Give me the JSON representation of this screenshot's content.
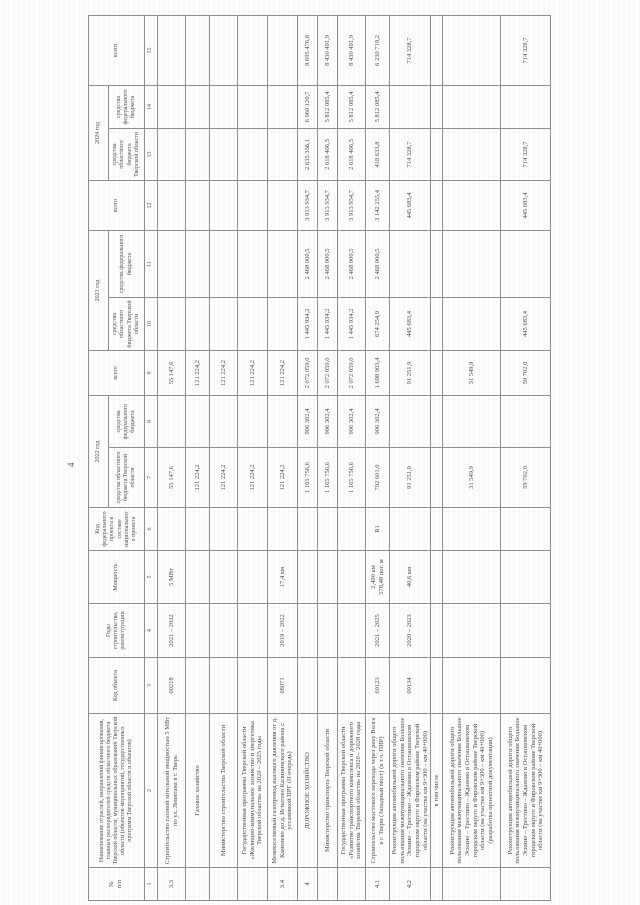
{
  "page": {
    "number": "4"
  },
  "table": {
    "header": {
      "col_no": "№\nп/п",
      "col_name": "Наименование отраслей, направлений финансирования, главных распорядителей средств областного бюджета Тверской области, муниципальных образований Тверской области (объектов-мероприятий, государственных программ Тверской области и объектов)",
      "col_code": "Код объекта",
      "col_years": "Годы строительства, реконструкции",
      "col_capacity": "Мощность",
      "col_fedproj": "Код федерального проекта в составе национального проекта",
      "years": [
        {
          "label": "2022 год",
          "oblast": "средства областного бюджета Тверской области",
          "federal": "средства федерального бюджета",
          "total": "всего"
        },
        {
          "label": "2023 год",
          "oblast": "средства областного бюджета Тверской области",
          "federal": "средства федерального бюджета",
          "total": "всего"
        },
        {
          "label": "2024 год",
          "oblast": "средства областного бюджета Тверской области",
          "federal": "средства федерального бюджета",
          "total": "всего"
        }
      ],
      "numbering": [
        "1",
        "2",
        "3",
        "4",
        "5",
        "6",
        "7",
        "8",
        "9",
        "10",
        "11",
        "12",
        "13",
        "14",
        "15"
      ]
    },
    "rows": [
      {
        "cells": [
          "3.3",
          "Строительство газовой котельной мощностью 5 МВт по ул. Левитана в г. Тверь",
          "00218",
          "2021 – 2022",
          "5 МВт",
          "",
          "55 147,6",
          "",
          "55 147,6",
          "",
          "",
          "",
          "",
          "",
          ""
        ]
      },
      {
        "cells": [
          "",
          "Газовое хозяйство",
          "",
          "",
          "",
          "",
          "121 224,2",
          "",
          "121 224,2",
          "",
          "",
          "",
          "",
          "",
          ""
        ]
      },
      {
        "cells": [
          "",
          "Министерство строительства Тверской области",
          "",
          "",
          "",
          "",
          "121 224,2",
          "",
          "121 224,2",
          "",
          "",
          "",
          "",
          "",
          ""
        ]
      },
      {
        "cells": [
          "",
          "Государственная программа Тверской области «Жилищно-коммунальное хозяйство и энергетика Тверской области» на 2020 – 2025 годы",
          "",
          "",
          "",
          "",
          "121 224,2",
          "",
          "121 224,2",
          "",
          "",
          "",
          "",
          "",
          ""
        ]
      },
      {
        "cells": [
          "3.4",
          "Межпоселковый газопровод высокого давления от д. Каменево до д. Игнатово Калининского района с установкой ПРГ (II очередь)",
          "08071",
          "2019 – 2022",
          "17,4 км",
          "",
          "121 224,2",
          "",
          "121 224,2",
          "",
          "",
          "",
          "",
          "",
          ""
        ]
      },
      {
        "cells": [
          "4",
          "ДОРОЖНОЕ ХОЗЯЙСТВО",
          "",
          "",
          "",
          "",
          "1 165 756,6",
          "906 302,4",
          "2 072 059,0",
          "1 445 934,2",
          "2 468 000,5",
          "3 913 934,7",
          "2 635 356,1",
          "6 060 120,7",
          "8 695 476,8"
        ]
      },
      {
        "cells": [
          "",
          "Министерство транспорта Тверской области",
          "",
          "",
          "",
          "",
          "1 165 756,6",
          "906 302,4",
          "2 072 059,0",
          "1 445 934,2",
          "2 468 000,5",
          "3 913 934,7",
          "2 618 406,5",
          "5 812 085,4",
          "8 430 491,9"
        ]
      },
      {
        "cells": [
          "",
          "Государственная программа Тверской области «Развитие транспортного комплекса и дорожного хозяйства Тверской области» на 2020 – 2028 годы",
          "",
          "",
          "",
          "",
          "1 165 756,6",
          "906 302,4",
          "2 072 059,0",
          "1 445 934,2",
          "2 468 000,5",
          "3 913 934,7",
          "2 618 406,5",
          "5 812 085,4",
          "8 430 491,9"
        ]
      },
      {
        "cells": [
          "4.1",
          "Строительство мостового перехода через реку Волга в г. Твери (Западный мост) (в т.ч. ПИР)",
          "60123",
          "2021 – 2025",
          "2,490 км\n578,48 пог. м",
          "R1",
          "792 601,0",
          "906 302,4",
          "1 698 903,4",
          "674 254,9",
          "2 468 000,5",
          "3 142 255,4",
          "418 633,8",
          "5 812 085,4",
          "6 230 719,2"
        ]
      },
      {
        "cells": [
          "4.2",
          "Реконструкция автомобильной дороги общего пользования межмуниципального значения Большое Эскино – Трестино – Жданово в Осташковском городском округе и Фировском районе Тверской области (на участке км 9+300 – км 40+000)",
          "09134",
          "2020 – 2023",
          "40,6 км",
          "",
          "91 251,9",
          "",
          "91 251,9",
          "445 683,4",
          "",
          "445 683,4",
          "714 328,7",
          "",
          "714 328,7"
        ]
      },
      {
        "cells": [
          "",
          "в том числе",
          "",
          "",
          "",
          "",
          "",
          "",
          "",
          "",
          "",
          "",
          "",
          "",
          ""
        ]
      },
      {
        "cells": [
          "",
          "Реконструкция автомобильной дороги общего пользования межмуниципального значения Большое Эскино – Трестино – Жданово в Осташковском городском округе и Фировском районе Тверской области (на участке км 9+300 – км 40+000) (разработка проектной документации)",
          "",
          "",
          "",
          "",
          "31 549,9",
          "",
          "31 549,9",
          "",
          "",
          "",
          "",
          "",
          ""
        ]
      },
      {
        "cells": [
          "",
          "Реконструкция автомобильной дороги общего пользования межмуниципального значения Большое Эскино – Трестино – Жданово в Осташковском городском округе и Фировском районе Тверской области (на участке км 9+300 – км 40+000)",
          "",
          "",
          "",
          "",
          "59 702,0",
          "",
          "59 702,0",
          "445 683,4",
          "",
          "445 683,4",
          "714 328,7",
          "",
          "714 328,7"
        ]
      }
    ]
  }
}
